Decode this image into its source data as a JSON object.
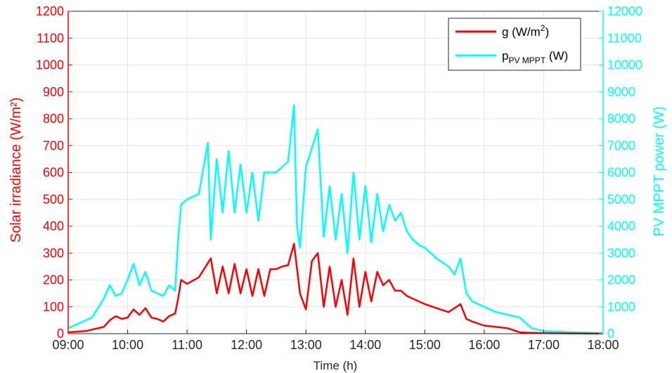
{
  "chart_data": {
    "type": "line",
    "xlabel": "Time (h)",
    "ylabel_left": "Solar irradiance (W/m²)",
    "ylabel_right": "PV MPPT power (W)",
    "x_ticks": [
      "09:00",
      "10:00",
      "11:00",
      "12:00",
      "13:00",
      "14:00",
      "15:00",
      "16:00",
      "17:00",
      "18:00"
    ],
    "xlim": [
      9,
      18
    ],
    "ylim_left": [
      0,
      1200
    ],
    "ylim_right": [
      0,
      12000
    ],
    "left_ticks": [
      0,
      100,
      200,
      300,
      400,
      500,
      600,
      700,
      800,
      900,
      1000,
      1100,
      1200
    ],
    "right_ticks": [
      0,
      1000,
      2000,
      3000,
      4000,
      5000,
      6000,
      7000,
      8000,
      9000,
      10000,
      11000,
      12000
    ],
    "grid": true,
    "legend_position": "top-right",
    "colors": {
      "irradiance": "#ff0000",
      "power": "#00ffff"
    },
    "series": [
      {
        "name": "g (W/m²)",
        "legend_main": "g (W/m",
        "legend_sup": "2",
        "legend_tail": ")",
        "axis": "left",
        "x": [
          9.0,
          9.3,
          9.6,
          9.7,
          9.8,
          9.9,
          10.0,
          10.1,
          10.2,
          10.3,
          10.4,
          10.5,
          10.6,
          10.7,
          10.8,
          10.85,
          10.9,
          11.0,
          11.2,
          11.4,
          11.5,
          11.6,
          11.7,
          11.8,
          11.9,
          12.0,
          12.1,
          12.2,
          12.3,
          12.4,
          12.5,
          12.6,
          12.7,
          12.8,
          12.9,
          13.0,
          13.1,
          13.2,
          13.3,
          13.4,
          13.5,
          13.6,
          13.7,
          13.8,
          13.9,
          14.0,
          14.1,
          14.2,
          14.3,
          14.4,
          14.5,
          14.6,
          14.7,
          14.8,
          14.9,
          15.0,
          15.2,
          15.4,
          15.5,
          15.6,
          15.7,
          15.8,
          16.0,
          16.2,
          16.4,
          16.6,
          16.8,
          17.0,
          17.5,
          18.0
        ],
        "values": [
          5,
          10,
          25,
          50,
          65,
          55,
          60,
          90,
          70,
          95,
          60,
          55,
          45,
          65,
          75,
          130,
          200,
          185,
          210,
          280,
          150,
          250,
          150,
          260,
          150,
          240,
          140,
          240,
          140,
          240,
          240,
          250,
          255,
          335,
          150,
          90,
          270,
          300,
          100,
          250,
          100,
          200,
          70,
          280,
          100,
          230,
          120,
          230,
          180,
          200,
          160,
          160,
          140,
          130,
          120,
          110,
          95,
          80,
          95,
          110,
          55,
          45,
          30,
          25,
          20,
          5,
          3,
          2,
          1,
          0
        ]
      },
      {
        "name": "pPV MPPT (W)",
        "legend_main": "p",
        "legend_sub": "PV MPPT",
        "legend_tail": " (W)",
        "axis": "right",
        "x": [
          9.0,
          9.2,
          9.4,
          9.6,
          9.7,
          9.8,
          9.9,
          10.0,
          10.1,
          10.2,
          10.3,
          10.4,
          10.5,
          10.6,
          10.7,
          10.8,
          10.85,
          10.9,
          11.0,
          11.2,
          11.35,
          11.4,
          11.5,
          11.6,
          11.7,
          11.8,
          11.9,
          12.0,
          12.1,
          12.2,
          12.3,
          12.4,
          12.5,
          12.6,
          12.7,
          12.8,
          12.85,
          12.9,
          13.0,
          13.1,
          13.2,
          13.3,
          13.4,
          13.5,
          13.6,
          13.7,
          13.8,
          13.9,
          14.0,
          14.1,
          14.2,
          14.3,
          14.4,
          14.5,
          14.6,
          14.7,
          14.8,
          14.9,
          15.0,
          15.2,
          15.4,
          15.5,
          15.6,
          15.7,
          15.8,
          16.0,
          16.2,
          16.4,
          16.6,
          16.8,
          17.0,
          17.5,
          18.0
        ],
        "values": [
          200,
          400,
          600,
          1300,
          1800,
          1400,
          1500,
          2000,
          2600,
          1800,
          2300,
          1600,
          1500,
          1400,
          1800,
          1600,
          3500,
          4800,
          5000,
          5200,
          7100,
          3500,
          6500,
          4500,
          6800,
          4500,
          6300,
          4500,
          6000,
          4200,
          6000,
          6000,
          6000,
          6200,
          6400,
          8500,
          4000,
          3200,
          6200,
          6900,
          7600,
          3600,
          5500,
          3500,
          5200,
          3000,
          6000,
          3500,
          5500,
          3400,
          5200,
          3800,
          4800,
          4200,
          4500,
          3800,
          3500,
          3300,
          3200,
          2800,
          2500,
          2200,
          2800,
          1500,
          1200,
          1000,
          800,
          700,
          600,
          200,
          100,
          50,
          20
        ]
      }
    ]
  }
}
